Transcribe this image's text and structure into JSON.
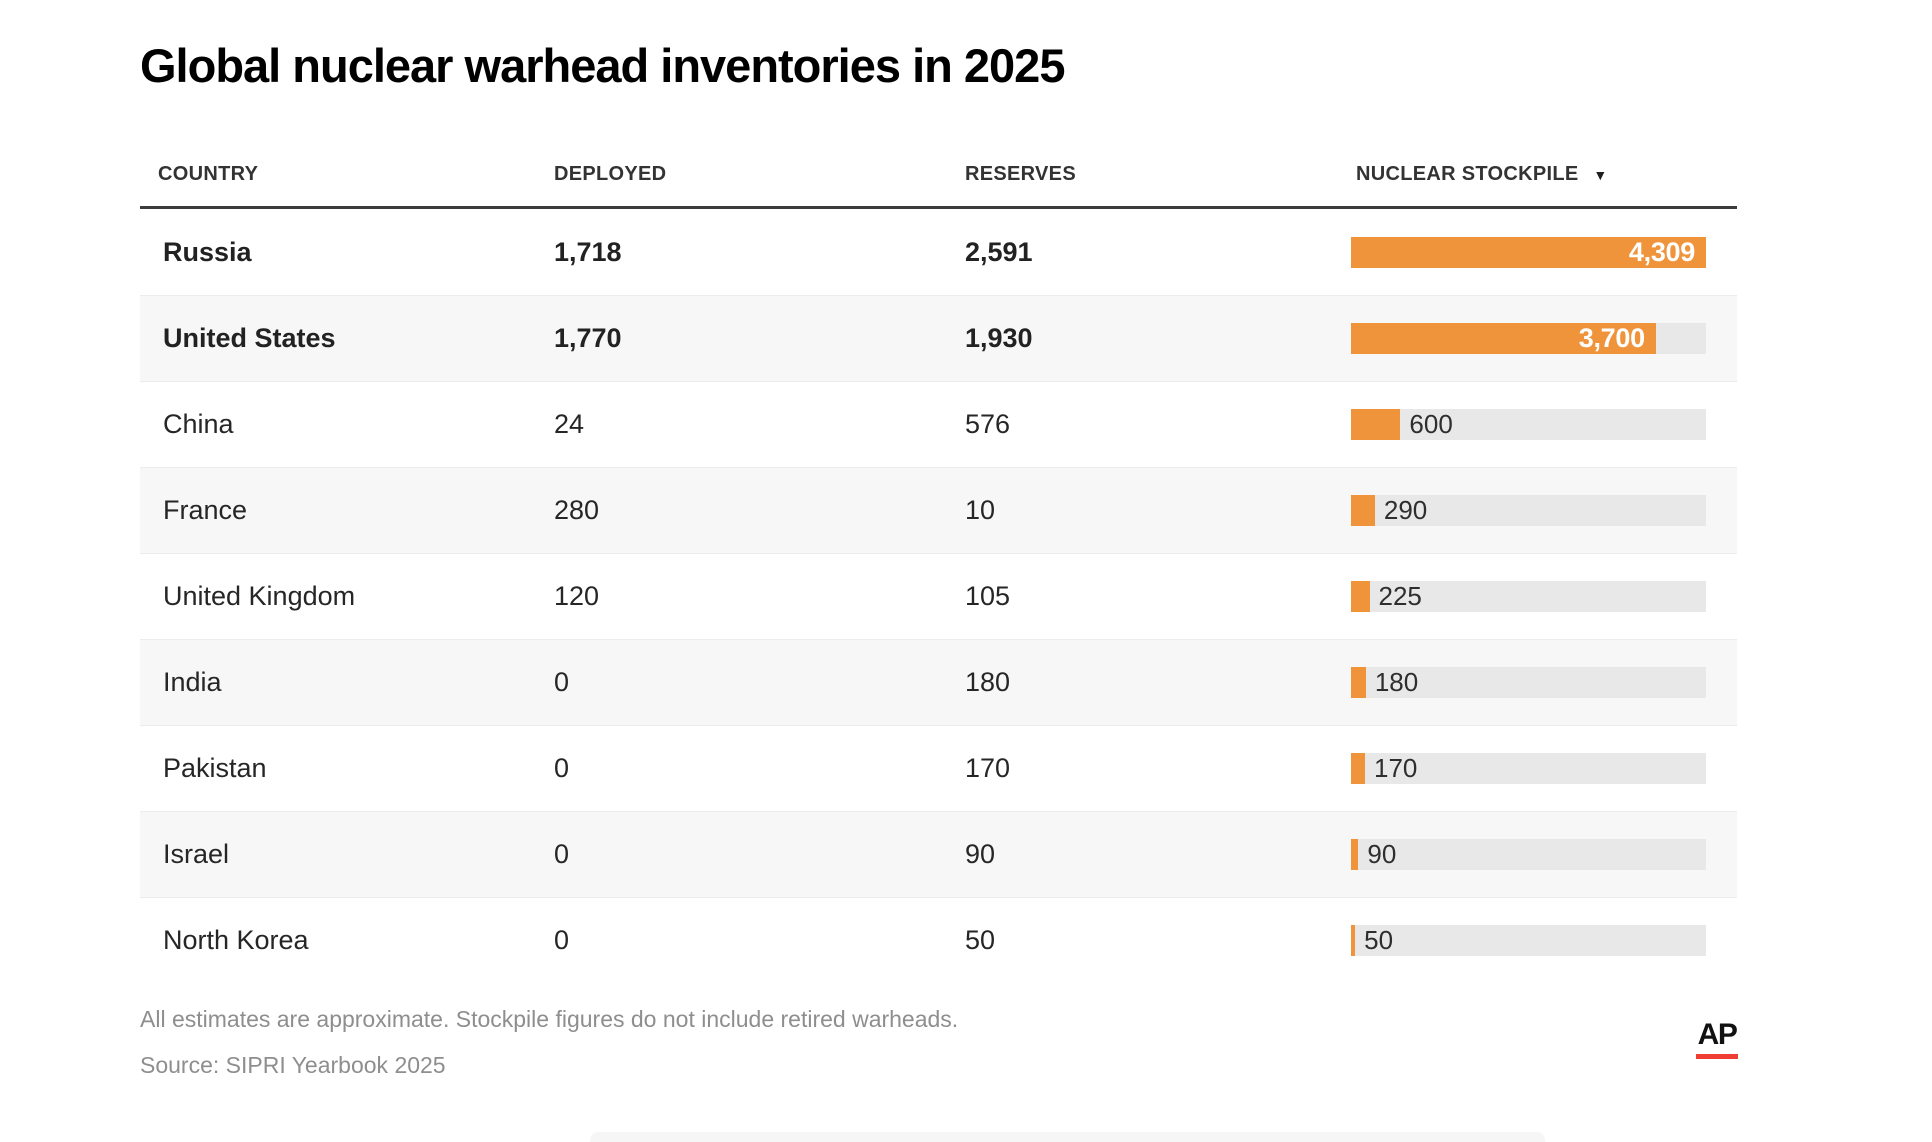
{
  "title": "Global nuclear warhead inventories in 2025",
  "table": {
    "columns": [
      "COUNTRY",
      "DEPLOYED",
      "RESERVES",
      "NUCLEAR STOCKPILE"
    ],
    "sort_icon": "▼",
    "max_stockpile": 4309,
    "rows": [
      {
        "country": "Russia",
        "deployed": "1,718",
        "reserves": "2,591",
        "stockpile": 4309,
        "stockpile_label": "4,309",
        "bold": true,
        "label_inside": true
      },
      {
        "country": "United States",
        "deployed": "1,770",
        "reserves": "1,930",
        "stockpile": 3700,
        "stockpile_label": "3,700",
        "bold": true,
        "label_inside": true
      },
      {
        "country": "China",
        "deployed": "24",
        "reserves": "576",
        "stockpile": 600,
        "stockpile_label": "600",
        "bold": false,
        "label_inside": false
      },
      {
        "country": "France",
        "deployed": "280",
        "reserves": "10",
        "stockpile": 290,
        "stockpile_label": "290",
        "bold": false,
        "label_inside": false
      },
      {
        "country": "United Kingdom",
        "deployed": "120",
        "reserves": "105",
        "stockpile": 225,
        "stockpile_label": "225",
        "bold": false,
        "label_inside": false
      },
      {
        "country": "India",
        "deployed": "0",
        "reserves": "180",
        "stockpile": 180,
        "stockpile_label": "180",
        "bold": false,
        "label_inside": false
      },
      {
        "country": "Pakistan",
        "deployed": "0",
        "reserves": "170",
        "stockpile": 170,
        "stockpile_label": "170",
        "bold": false,
        "label_inside": false
      },
      {
        "country": "Israel",
        "deployed": "0",
        "reserves": "90",
        "stockpile": 90,
        "stockpile_label": "90",
        "bold": false,
        "label_inside": false
      },
      {
        "country": "North Korea",
        "deployed": "0",
        "reserves": "50",
        "stockpile": 50,
        "stockpile_label": "50",
        "bold": false,
        "label_inside": false
      }
    ]
  },
  "footer": {
    "note": "All estimates are approximate. Stockpile figures do not include retired warheads.",
    "source": "Source: SIPRI Yearbook 2025"
  },
  "logo": {
    "text": "AP"
  },
  "colors": {
    "bar_orange": "#F0943C",
    "bar_track": "#E8E8E8",
    "header_rule": "#3C3C3C",
    "alt_row": "#F7F7F7",
    "footer_text": "#8E8E8E",
    "ap_red": "#EF3D33"
  },
  "chart_data": {
    "type": "bar",
    "title": "Global nuclear warhead inventories in 2025",
    "categories": [
      "Russia",
      "United States",
      "China",
      "France",
      "United Kingdom",
      "India",
      "Pakistan",
      "Israel",
      "North Korea"
    ],
    "series": [
      {
        "name": "Deployed",
        "values": [
          1718,
          1770,
          24,
          280,
          120,
          0,
          0,
          0,
          0
        ]
      },
      {
        "name": "Reserves",
        "values": [
          2591,
          1930,
          576,
          10,
          105,
          180,
          170,
          90,
          50
        ]
      },
      {
        "name": "Nuclear stockpile",
        "values": [
          4309,
          3700,
          600,
          290,
          225,
          180,
          170,
          90,
          50
        ]
      }
    ],
    "bars_shown_for": "Nuclear stockpile",
    "xlim": [
      0,
      4309
    ],
    "sort": "Nuclear stockpile, descending",
    "legend_position": "none",
    "grid": false,
    "note": "All estimates are approximate. Stockpile figures do not include retired warheads.",
    "source": "Source: SIPRI Yearbook 2025"
  }
}
